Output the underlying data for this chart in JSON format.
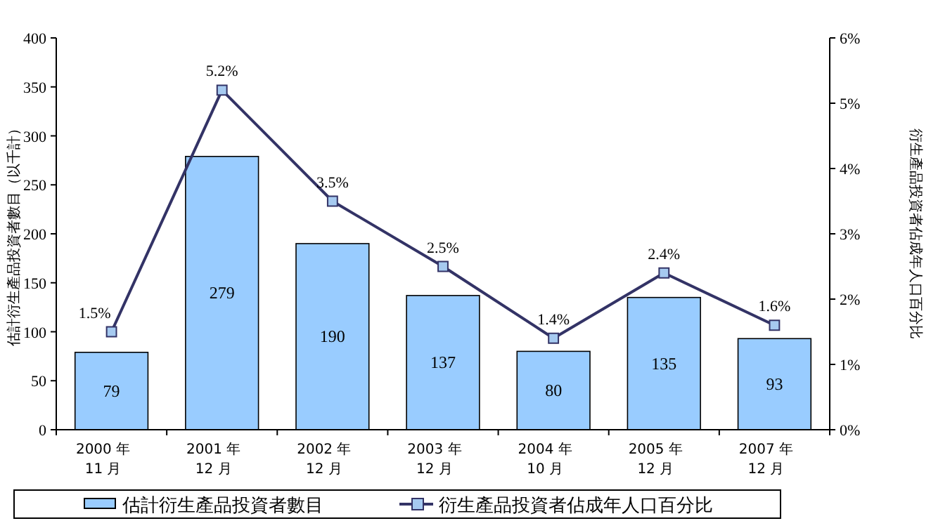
{
  "chart_data": {
    "type": "bar",
    "ylabel": "估計衍生產品投資者數目（以千計）",
    "y2label": "衍生產品投資者佔成年人口百分比",
    "categories": [
      "2000 年\n11 月",
      "2001 年\n12 月",
      "2002 年\n12 月",
      "2003 年\n12 月",
      "2004 年\n10 月",
      "2005 年\n12 月",
      "2007 年\n12 月"
    ],
    "series": [
      {
        "name": "估計衍生產品投資者數目",
        "color": "#99ccff",
        "values": [
          79,
          279,
          190,
          137,
          80,
          135,
          93
        ],
        "value_labels": [
          "79",
          "279",
          "190",
          "137",
          "80",
          "135",
          "93"
        ]
      },
      {
        "name": "衍生產品投資者佔成年人口百分比",
        "type": "line",
        "axis": "y2",
        "color": "#333366",
        "marker": "square",
        "values": [
          1.5,
          5.2,
          3.5,
          2.5,
          1.4,
          2.4,
          1.6
        ],
        "value_labels": [
          "1.5%",
          "5.2%",
          "3.5%",
          "2.5%",
          "1.4%",
          "2.4%",
          "1.6%"
        ]
      }
    ],
    "ylim": [
      0,
      400
    ],
    "yticks": [
      0,
      50,
      100,
      150,
      200,
      250,
      300,
      350,
      400
    ],
    "y2lim": [
      0,
      6
    ],
    "y2ticks": [
      {
        "value": 0,
        "label": "0%"
      },
      {
        "value": 1,
        "label": "1%"
      },
      {
        "value": 2,
        "label": "2%"
      },
      {
        "value": 3,
        "label": "3%"
      },
      {
        "value": 4,
        "label": "4%"
      },
      {
        "value": 5,
        "label": "5%"
      },
      {
        "value": 6,
        "label": "6%"
      }
    ],
    "legend": "bottom"
  }
}
